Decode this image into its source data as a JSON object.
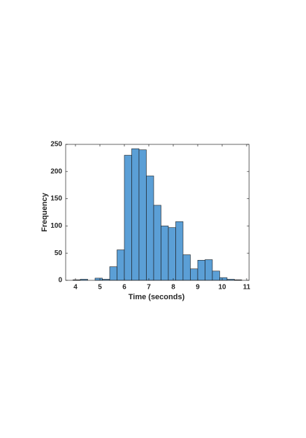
{
  "chart_data": {
    "type": "histogram",
    "xlabel": "Time (seconds)",
    "ylabel": "Frequency",
    "bins": [
      3.9,
      4.2,
      4.5,
      4.8,
      5.1,
      5.4,
      5.7,
      6.0,
      6.3,
      6.6,
      6.9,
      7.2,
      7.5,
      7.8,
      8.1,
      8.4,
      8.7,
      9.0,
      9.3,
      9.6,
      9.9,
      10.2,
      10.5,
      10.8
    ],
    "values": [
      1,
      2,
      0,
      4,
      2,
      25,
      56,
      230,
      242,
      240,
      192,
      138,
      100,
      97,
      108,
      47,
      21,
      37,
      38,
      17,
      5,
      2,
      1
    ],
    "color": "#5b9fd6",
    "xlim": [
      3.6,
      11.1
    ],
    "xticks": [
      4,
      5,
      6,
      7,
      8,
      9,
      10,
      11
    ],
    "ylim": [
      0,
      250
    ],
    "yticks": [
      0,
      50,
      100,
      150,
      200,
      250
    ]
  }
}
